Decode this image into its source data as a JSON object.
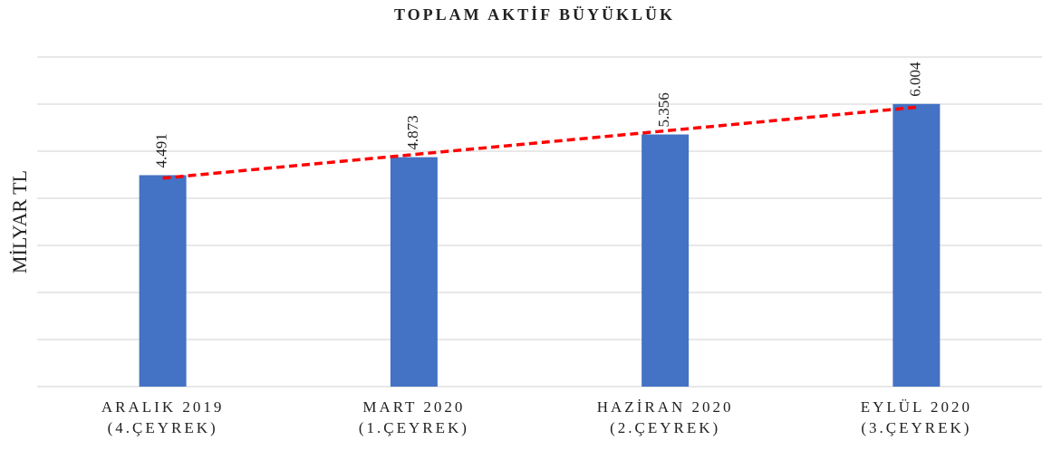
{
  "chart_data": {
    "type": "bar",
    "title": "TOPLAM AKTİF BÜYÜKLÜK",
    "ylabel": "MİLYAR TL",
    "categories": [
      [
        "ARALIK 2019",
        "(4.ÇEYREK)"
      ],
      [
        "MART 2020",
        "(1.ÇEYREK)"
      ],
      [
        "HAZİRAN 2020",
        "(2.ÇEYREK)"
      ],
      [
        "EYLÜL 2020",
        "(3.ÇEYREK)"
      ]
    ],
    "values": [
      4491,
      4873,
      5356,
      6004
    ],
    "value_labels": [
      "4.491",
      "4.873",
      "5.356",
      "6.004"
    ],
    "color": "#4472c4",
    "ylim": [
      0,
      7000
    ],
    "yticks": [
      0,
      1000,
      2000,
      3000,
      4000,
      5000,
      6000,
      7000
    ],
    "grid": true,
    "trendline": {
      "type": "linear",
      "color": "#ff0000"
    }
  }
}
